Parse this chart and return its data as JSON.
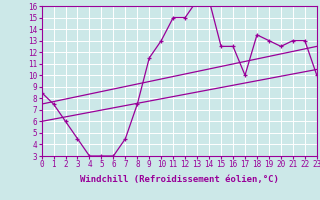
{
  "xlabel": "Windchill (Refroidissement éolien,°C)",
  "bg_color": "#cce8e8",
  "line_color": "#990099",
  "grid_color": "#ffffff",
  "xmin": 0,
  "xmax": 23,
  "ymin": 3,
  "ymax": 16,
  "data_x": [
    0,
    1,
    2,
    3,
    4,
    5,
    6,
    7,
    8,
    9,
    10,
    11,
    12,
    13,
    14,
    15,
    16,
    17,
    18,
    19,
    20,
    21,
    22,
    23
  ],
  "data_y": [
    8.5,
    7.5,
    6.0,
    4.5,
    3.0,
    3.0,
    3.0,
    4.5,
    7.5,
    11.5,
    13.0,
    15.0,
    15.0,
    16.5,
    16.5,
    12.5,
    12.5,
    10.0,
    13.5,
    13.0,
    12.5,
    13.0,
    13.0,
    10.0
  ],
  "line1_x": [
    0,
    23
  ],
  "line1_y": [
    7.5,
    12.5
  ],
  "line2_x": [
    0,
    23
  ],
  "line2_y": [
    6.0,
    10.5
  ],
  "xlabel_fontsize": 6.5,
  "tick_fontsize": 5.5
}
